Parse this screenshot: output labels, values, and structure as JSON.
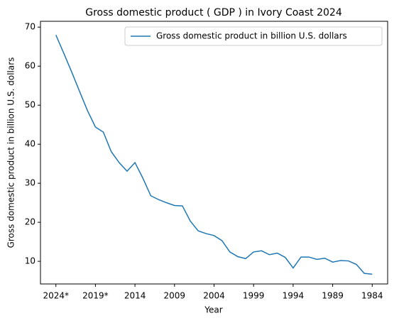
{
  "chart_data": {
    "type": "line",
    "title": "Gross domestic product ( GDP ) in Ivory Coast 2024",
    "x_label": "Year",
    "y_label": "Gross domestic product in billion U.S. dollars",
    "categories": [
      "2024*",
      null,
      null,
      null,
      null,
      "2019*",
      null,
      null,
      null,
      null,
      "2014",
      null,
      null,
      null,
      null,
      "2009",
      null,
      null,
      null,
      null,
      "2004",
      null,
      null,
      null,
      null,
      "1999",
      null,
      null,
      null,
      null,
      "1994",
      null,
      null,
      null,
      null,
      "1989",
      null,
      null,
      null,
      null,
      "1984"
    ],
    "series": [
      {
        "name": "Gross domestic product in billion U.S. dollars",
        "color": "#1f77b4",
        "values": [
          68.0,
          63.3,
          58.5,
          53.5,
          48.6,
          44.4,
          43.1,
          38.1,
          35.3,
          33.1,
          35.3,
          31.3,
          26.8,
          25.8,
          25.0,
          24.3,
          24.2,
          20.3,
          17.8,
          17.1,
          16.6,
          15.3,
          12.4,
          11.2,
          10.7,
          12.4,
          12.7,
          11.7,
          12.1,
          11.0,
          8.3,
          11.1,
          11.1,
          10.5,
          10.8,
          9.8,
          10.2,
          10.1,
          9.2,
          6.9,
          6.7
        ]
      }
    ],
    "ylim": [
      4.2,
      71.5
    ],
    "yticks": [
      10,
      20,
      30,
      40,
      50,
      60,
      70
    ],
    "grid": false,
    "legend": "upper right"
  }
}
